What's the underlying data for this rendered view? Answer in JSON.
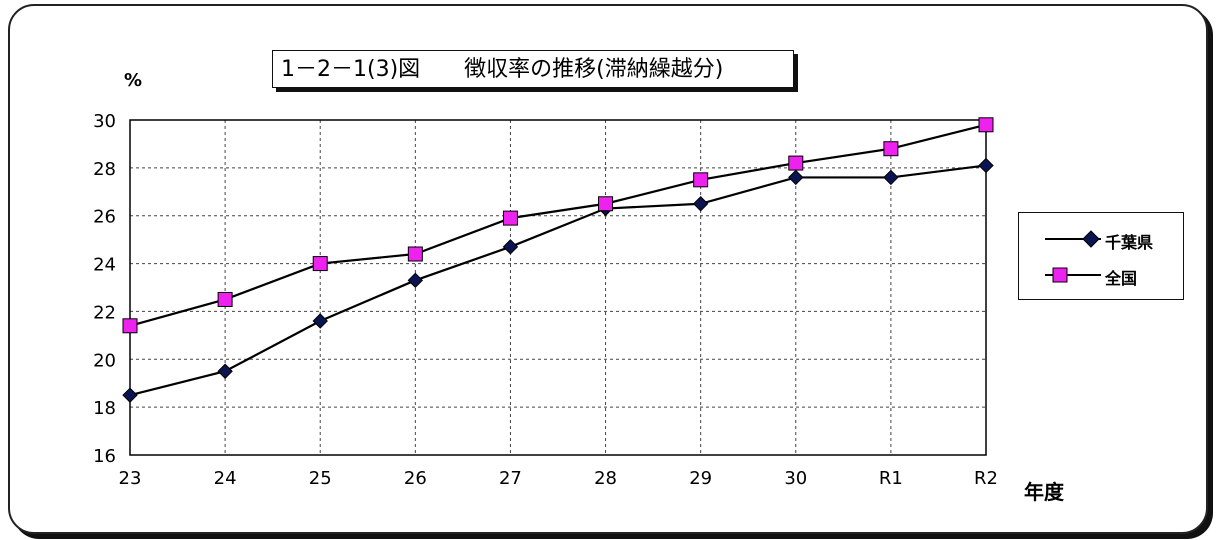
{
  "chart_data": {
    "type": "line",
    "title": "1－2－1(3)図　　徴収率の推移(滞納繰越分)",
    "ylabel": "%",
    "xlabel": "年度",
    "categories": [
      "23",
      "24",
      "25",
      "26",
      "27",
      "28",
      "29",
      "30",
      "R1",
      "R2"
    ],
    "ylim": [
      16,
      30
    ],
    "yticks": [
      16,
      18,
      20,
      22,
      24,
      26,
      28,
      30
    ],
    "grid": true,
    "legend_position": "right",
    "series": [
      {
        "name": "千葉県",
        "marker": "diamond",
        "color": "#0a1450",
        "values": [
          18.5,
          19.5,
          21.6,
          23.3,
          24.7,
          26.3,
          26.5,
          27.6,
          27.6,
          28.1
        ]
      },
      {
        "name": "全国",
        "marker": "square",
        "color": "#ee22ee",
        "values": [
          21.4,
          22.5,
          24.0,
          24.4,
          25.9,
          26.5,
          27.5,
          28.2,
          28.8,
          29.8
        ]
      }
    ]
  }
}
